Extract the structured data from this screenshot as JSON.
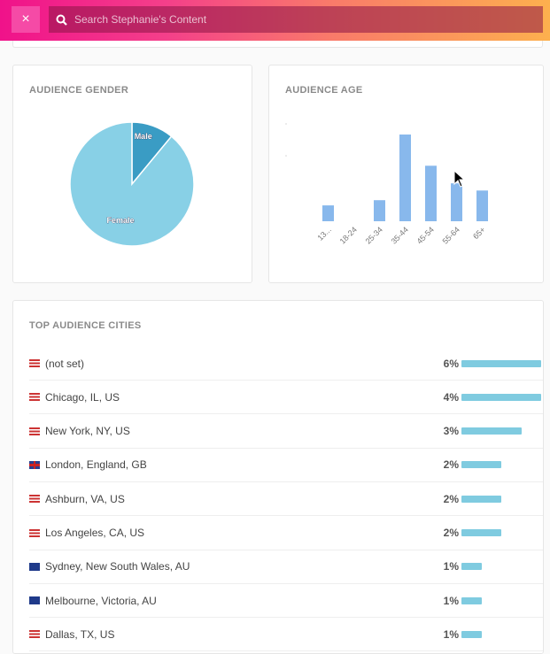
{
  "header": {
    "close_label": "×",
    "search_placeholder": "Search Stephanie's Content"
  },
  "gender": {
    "title": "AUDIENCE GENDER"
  },
  "age": {
    "title": "AUDIENCE AGE"
  },
  "chart_data": [
    {
      "type": "pie",
      "title": "AUDIENCE GENDER",
      "labels": [
        "Male",
        "Female"
      ],
      "values": [
        11,
        89
      ],
      "colors": [
        "#3a9cc4",
        "#88d0e6"
      ]
    },
    {
      "type": "bar",
      "title": "AUDIENCE AGE",
      "categories": [
        "13...",
        "18-24",
        "25-34",
        "35-44",
        "45-54",
        "55-64",
        "65+"
      ],
      "values": [
        6.4,
        0,
        8.5,
        35,
        22.4,
        15.3,
        12.4
      ],
      "color": "#88b8ec"
    }
  ],
  "cities": {
    "title": "TOP AUDIENCE CITIES",
    "rows": [
      {
        "flag": "us",
        "name": "(not set)",
        "pct": "6%",
        "fill": 1.0
      },
      {
        "flag": "us",
        "name": "Chicago, IL, US",
        "pct": "4%",
        "fill": 1.0
      },
      {
        "flag": "us",
        "name": "New York, NY, US",
        "pct": "3%",
        "fill": 0.75
      },
      {
        "flag": "gb",
        "name": "London, England, GB",
        "pct": "2%",
        "fill": 0.5
      },
      {
        "flag": "us",
        "name": "Ashburn, VA, US",
        "pct": "2%",
        "fill": 0.5
      },
      {
        "flag": "us",
        "name": "Los Angeles, CA, US",
        "pct": "2%",
        "fill": 0.5
      },
      {
        "flag": "au",
        "name": "Sydney, New South Wales, AU",
        "pct": "1%",
        "fill": 0.25
      },
      {
        "flag": "au",
        "name": "Melbourne, Victoria, AU",
        "pct": "1%",
        "fill": 0.25
      },
      {
        "flag": "us",
        "name": "Dallas, TX, US",
        "pct": "1%",
        "fill": 0.25
      }
    ]
  }
}
